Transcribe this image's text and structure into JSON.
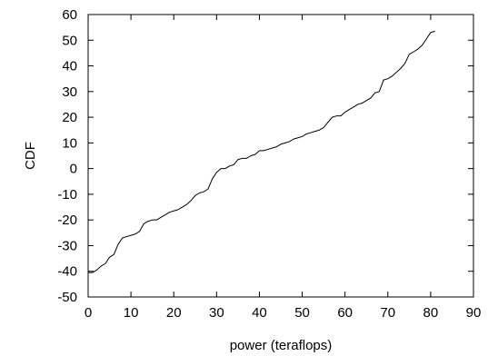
{
  "chart_data": {
    "type": "line",
    "xlabel": "power (teraflops)",
    "ylabel": "CDF",
    "xlim": [
      0,
      90
    ],
    "ylim": [
      -50,
      60
    ],
    "xticks": [
      0,
      10,
      20,
      30,
      40,
      50,
      60,
      70,
      80,
      90
    ],
    "yticks": [
      -50,
      -40,
      -30,
      -20,
      -10,
      0,
      10,
      20,
      30,
      40,
      50,
      60
    ],
    "grid": false,
    "legend": "none",
    "series": [
      {
        "color": "#000000",
        "points": [
          [
            0.0,
            -40.5
          ],
          [
            1.0,
            -40.5
          ],
          [
            2.0,
            -39.5
          ],
          [
            3.0,
            -38.0
          ],
          [
            4.0,
            -37.0
          ],
          [
            5.0,
            -34.5
          ],
          [
            6.0,
            -33.5
          ],
          [
            7.0,
            -29.5
          ],
          [
            8.0,
            -27.0
          ],
          [
            9.0,
            -26.5
          ],
          [
            10.0,
            -26.0
          ],
          [
            11.0,
            -25.5
          ],
          [
            12.0,
            -24.5
          ],
          [
            13.0,
            -21.5
          ],
          [
            14.0,
            -20.5
          ],
          [
            15.0,
            -20.0
          ],
          [
            16.0,
            -20.0
          ],
          [
            17.0,
            -19.0
          ],
          [
            18.0,
            -18.0
          ],
          [
            19.0,
            -17.0
          ],
          [
            20.0,
            -16.5
          ],
          [
            21.0,
            -16.0
          ],
          [
            22.0,
            -15.0
          ],
          [
            23.0,
            -14.0
          ],
          [
            24.0,
            -12.5
          ],
          [
            25.0,
            -10.5
          ],
          [
            26.0,
            -9.5
          ],
          [
            27.0,
            -9.0
          ],
          [
            28.0,
            -8.0
          ],
          [
            29.0,
            -4.0
          ],
          [
            30.0,
            -1.5
          ],
          [
            31.0,
            0.0
          ],
          [
            32.0,
            0.0
          ],
          [
            33.0,
            1.0
          ],
          [
            34.0,
            1.5
          ],
          [
            35.0,
            3.5
          ],
          [
            36.0,
            4.0
          ],
          [
            37.0,
            4.0
          ],
          [
            38.0,
            5.0
          ],
          [
            39.0,
            5.5
          ],
          [
            40.0,
            7.0
          ],
          [
            41.0,
            7.0
          ],
          [
            42.0,
            7.5
          ],
          [
            43.0,
            8.0
          ],
          [
            44.0,
            8.5
          ],
          [
            45.0,
            9.5
          ],
          [
            46.0,
            10.0
          ],
          [
            47.0,
            10.5
          ],
          [
            48.0,
            11.5
          ],
          [
            49.0,
            12.0
          ],
          [
            50.0,
            12.5
          ],
          [
            51.0,
            13.5
          ],
          [
            52.0,
            14.0
          ],
          [
            53.0,
            14.5
          ],
          [
            54.0,
            15.0
          ],
          [
            55.0,
            16.0
          ],
          [
            56.0,
            18.0
          ],
          [
            57.0,
            20.0
          ],
          [
            58.0,
            20.5
          ],
          [
            59.0,
            20.5
          ],
          [
            60.0,
            22.0
          ],
          [
            61.0,
            23.0
          ],
          [
            62.0,
            24.0
          ],
          [
            63.0,
            25.0
          ],
          [
            64.0,
            25.5
          ],
          [
            65.0,
            26.5
          ],
          [
            66.0,
            27.5
          ],
          [
            67.0,
            29.5
          ],
          [
            68.0,
            30.0
          ],
          [
            69.0,
            34.5
          ],
          [
            70.0,
            35.0
          ],
          [
            71.0,
            36.0
          ],
          [
            72.0,
            37.5
          ],
          [
            73.0,
            39.0
          ],
          [
            74.0,
            41.0
          ],
          [
            75.0,
            44.5
          ],
          [
            76.0,
            45.5
          ],
          [
            77.0,
            46.5
          ],
          [
            78.0,
            48.0
          ],
          [
            79.0,
            50.5
          ],
          [
            80.0,
            53.0
          ],
          [
            81.0,
            53.5
          ]
        ]
      }
    ]
  }
}
